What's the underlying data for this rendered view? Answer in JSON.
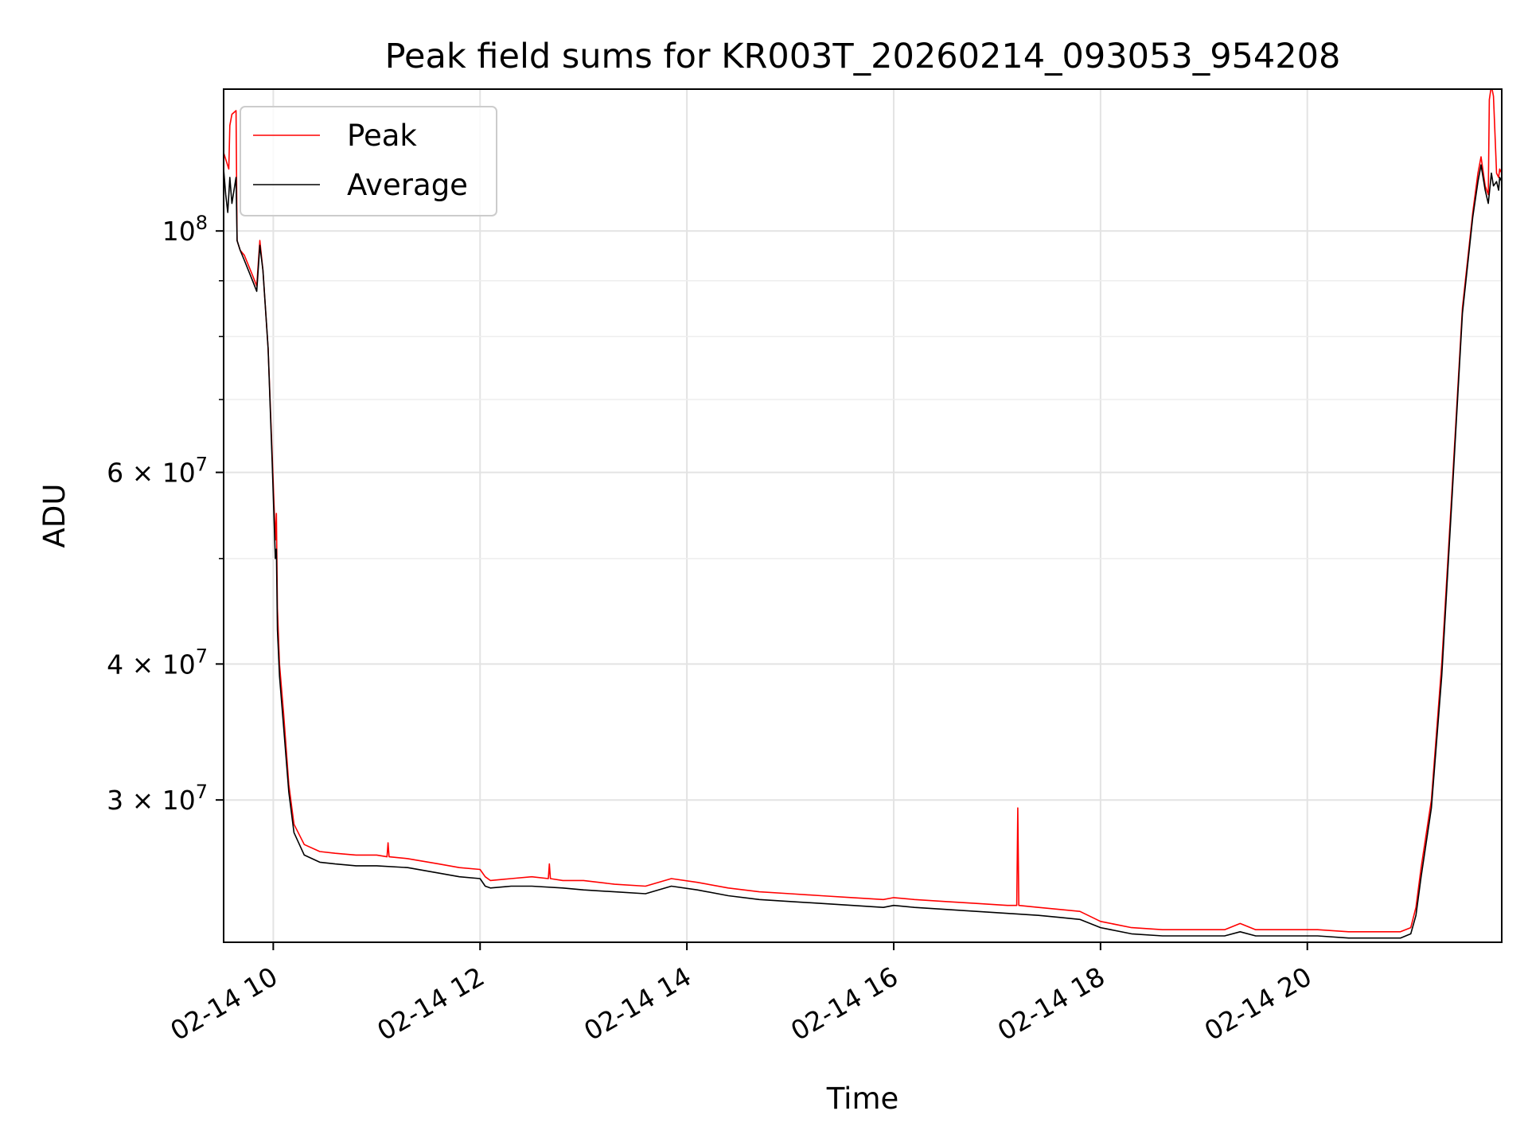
{
  "chart_data": {
    "type": "line",
    "title": "Peak field sums for KR003T_20260214_093053_954208",
    "xlabel": "Time",
    "ylabel": "ADU",
    "x_unit": "hours since 02-14 00:00",
    "xlim": [
      9.52,
      21.88
    ],
    "ylim": [
      22200000,
      135000000
    ],
    "yscale": "log",
    "grid": true,
    "legend_position": "top-left",
    "x_ticks": [
      {
        "value": 10,
        "label": "02-14 10"
      },
      {
        "value": 12,
        "label": "02-14 12"
      },
      {
        "value": 14,
        "label": "02-14 14"
      },
      {
        "value": 16,
        "label": "02-14 16"
      },
      {
        "value": 18,
        "label": "02-14 18"
      },
      {
        "value": 20,
        "label": "02-14 20"
      }
    ],
    "y_ticks": [
      {
        "value": 30000000,
        "mantissa": "3",
        "exponent": "7"
      },
      {
        "value": 40000000,
        "mantissa": "4",
        "exponent": "7"
      },
      {
        "value": 60000000,
        "mantissa": "6",
        "exponent": "7"
      },
      {
        "value": 100000000,
        "mantissa": "",
        "exponent": "8"
      }
    ],
    "y_minor_ticks": [
      50000000,
      70000000,
      80000000,
      90000000
    ],
    "series": [
      {
        "name": "Peak",
        "color": "#ff0000",
        "x": [
          9.52,
          9.57,
          9.58,
          9.6,
          9.64,
          9.65,
          9.68,
          9.72,
          9.8,
          9.84,
          9.87,
          9.9,
          9.95,
          9.99,
          10.02,
          10.03,
          10.04,
          10.06,
          10.1,
          10.15,
          10.2,
          10.3,
          10.45,
          10.6,
          10.8,
          11.0,
          11.1,
          11.11,
          11.12,
          11.3,
          11.6,
          11.8,
          12.0,
          12.05,
          12.1,
          12.3,
          12.5,
          12.66,
          12.67,
          12.68,
          12.8,
          13.0,
          13.3,
          13.6,
          13.85,
          14.1,
          14.4,
          14.7,
          15.0,
          15.3,
          15.6,
          15.9,
          16.0,
          16.2,
          16.5,
          16.8,
          17.1,
          17.19,
          17.2,
          17.21,
          17.4,
          17.6,
          17.8,
          18.0,
          18.3,
          18.6,
          18.9,
          19.2,
          19.35,
          19.5,
          19.8,
          20.1,
          20.4,
          20.7,
          20.9,
          21.0,
          21.05,
          21.1,
          21.2,
          21.3,
          21.4,
          21.5,
          21.6,
          21.65,
          21.68,
          21.72,
          21.75,
          21.76,
          21.78,
          21.8,
          21.83,
          21.85,
          21.86,
          21.88
        ],
        "y": [
          118000000,
          114000000,
          125000000,
          128000000,
          129000000,
          98000000,
          96000000,
          95000000,
          91000000,
          89000000,
          98000000,
          92000000,
          78000000,
          62000000,
          52000000,
          55000000,
          45000000,
          40000000,
          36000000,
          31000000,
          28500000,
          27300000,
          26900000,
          26800000,
          26700000,
          26700000,
          26600000,
          27400000,
          26600000,
          26500000,
          26200000,
          26000000,
          25900000,
          25500000,
          25300000,
          25400000,
          25500000,
          25400000,
          26200000,
          25400000,
          25300000,
          25300000,
          25100000,
          25000000,
          25400000,
          25200000,
          24900000,
          24700000,
          24600000,
          24500000,
          24400000,
          24300000,
          24400000,
          24300000,
          24200000,
          24100000,
          24000000,
          24000000,
          29500000,
          24000000,
          23900000,
          23800000,
          23700000,
          23200000,
          22900000,
          22800000,
          22800000,
          22800000,
          23100000,
          22800000,
          22800000,
          22800000,
          22700000,
          22700000,
          22700000,
          22900000,
          23900000,
          26000000,
          30000000,
          40000000,
          58000000,
          85000000,
          104000000,
          113000000,
          117000000,
          110000000,
          108000000,
          132000000,
          136000000,
          133000000,
          113000000,
          112000000,
          114000000,
          113000000
        ]
      },
      {
        "name": "Average",
        "color": "#000000",
        "x": [
          9.52,
          9.54,
          9.56,
          9.58,
          9.6,
          9.64,
          9.65,
          9.68,
          9.72,
          9.8,
          9.84,
          9.87,
          9.9,
          9.95,
          9.99,
          10.02,
          10.03,
          10.04,
          10.06,
          10.1,
          10.15,
          10.2,
          10.3,
          10.45,
          10.6,
          10.8,
          11.0,
          11.3,
          11.6,
          11.8,
          12.0,
          12.05,
          12.1,
          12.3,
          12.5,
          12.8,
          13.0,
          13.3,
          13.6,
          13.85,
          14.1,
          14.4,
          14.7,
          15.0,
          15.3,
          15.6,
          15.9,
          16.0,
          16.2,
          16.5,
          16.8,
          17.1,
          17.4,
          17.6,
          17.8,
          18.0,
          18.3,
          18.6,
          18.9,
          19.2,
          19.35,
          19.5,
          19.8,
          20.1,
          20.4,
          20.7,
          20.9,
          21.0,
          21.05,
          21.1,
          21.2,
          21.3,
          21.4,
          21.5,
          21.6,
          21.65,
          21.68,
          21.72,
          21.75,
          21.78,
          21.8,
          21.83,
          21.85,
          21.86,
          21.88
        ],
        "y": [
          114000000,
          108000000,
          104000000,
          112000000,
          106000000,
          112000000,
          98000000,
          96000000,
          94000000,
          90000000,
          88000000,
          97000000,
          92000000,
          78000000,
          61000000,
          50000000,
          51000000,
          43000000,
          39000000,
          35000000,
          30500000,
          28000000,
          26700000,
          26300000,
          26200000,
          26100000,
          26100000,
          26000000,
          25700000,
          25500000,
          25400000,
          25000000,
          24900000,
          25000000,
          25000000,
          24900000,
          24800000,
          24700000,
          24600000,
          25000000,
          24800000,
          24500000,
          24300000,
          24200000,
          24100000,
          24000000,
          23900000,
          24000000,
          23900000,
          23800000,
          23700000,
          23600000,
          23500000,
          23400000,
          23300000,
          22900000,
          22600000,
          22500000,
          22500000,
          22500000,
          22700000,
          22500000,
          22500000,
          22500000,
          22400000,
          22400000,
          22400000,
          22600000,
          23500000,
          25500000,
          29500000,
          39000000,
          57000000,
          84000000,
          103000000,
          111000000,
          115000000,
          109000000,
          106000000,
          113000000,
          110000000,
          111000000,
          109000000,
          112000000,
          111000000
        ]
      }
    ]
  }
}
